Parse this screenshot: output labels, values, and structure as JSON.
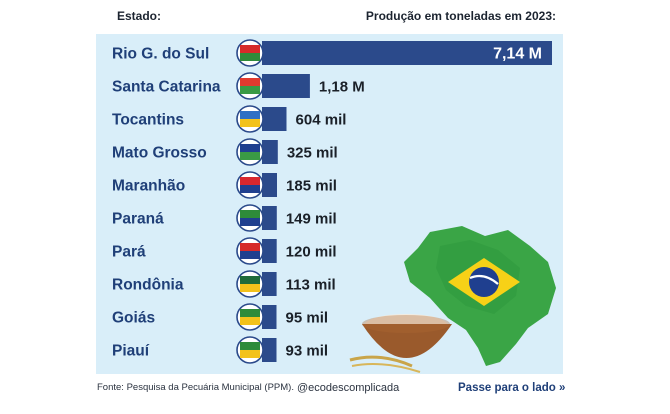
{
  "header": {
    "left": "Estado:",
    "right": "Produção em toneladas em 2023:"
  },
  "chart_data": {
    "type": "bar",
    "orientation": "horizontal",
    "ylabel": "Estado:",
    "xlabel": "Produção em toneladas em 2023:",
    "categories": [
      "Rio G. do Sul",
      "Santa Catarina",
      "Tocantins",
      "Mato Grosso",
      "Maranhão",
      "Paraná",
      "Pará",
      "Rondônia",
      "Goiás",
      "Piauí"
    ],
    "values": [
      7140000,
      1180000,
      604000,
      325000,
      185000,
      149000,
      120000,
      113000,
      95000,
      93000
    ],
    "value_labels": [
      "7,14 M",
      "1,18 M",
      "604 mil",
      "325 mil",
      "185 mil",
      "149 mil",
      "120 mil",
      "113 mil",
      "95 mil",
      "93 mil"
    ],
    "bar_color": "#2b4a8b",
    "grid": false,
    "legend": "none"
  },
  "footer": {
    "source": "Fonte: Pesquisa da Pecuária Municipal (PPM).",
    "handle": "@ecodescomplicada",
    "swipe": "Passe para o lado »"
  }
}
